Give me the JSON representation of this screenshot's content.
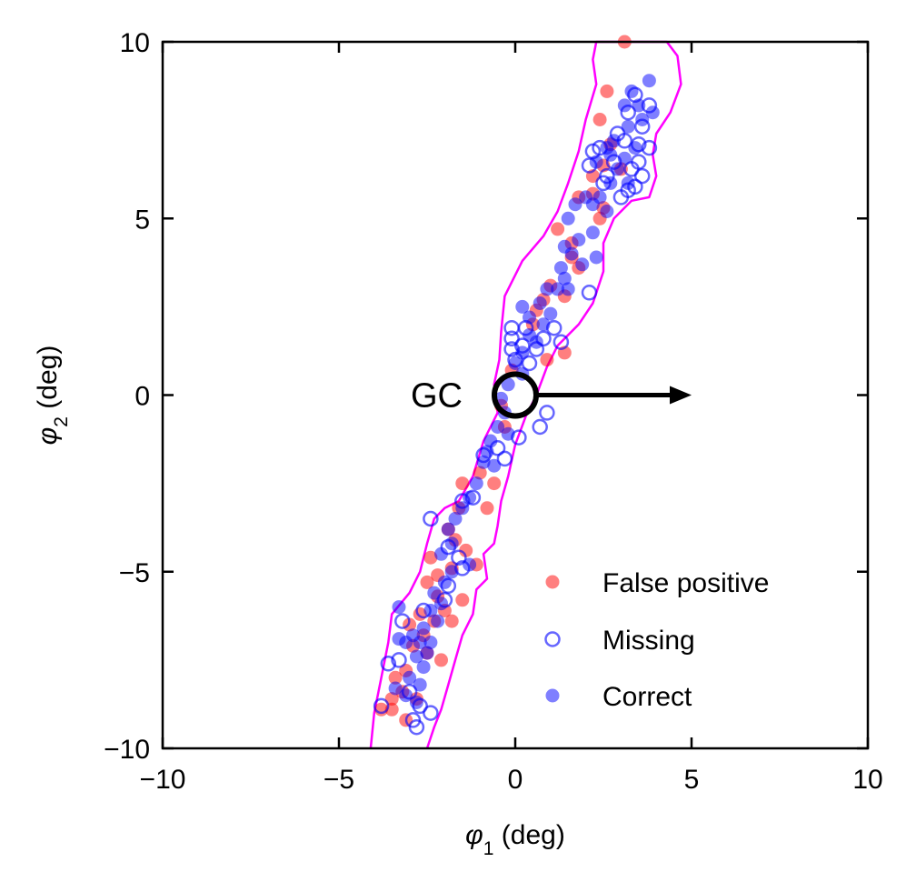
{
  "chart_data": {
    "type": "scatter",
    "xlabel": {
      "symbol": "φ",
      "sub": "1",
      "unit": " (deg)"
    },
    "ylabel": {
      "symbol": "φ",
      "sub": "2",
      "unit": " (deg)"
    },
    "xlim": [
      -10,
      10
    ],
    "ylim": [
      -10,
      10
    ],
    "xticks": [
      -10,
      -5,
      0,
      5,
      10
    ],
    "yticks": [
      -10,
      -5,
      0,
      5,
      10
    ],
    "tick_labels_x": [
      "−10",
      "−5",
      "0",
      "5",
      "10"
    ],
    "tick_labels_y": [
      "−10",
      "−5",
      "0",
      "5",
      "10"
    ],
    "grid": false,
    "legend": {
      "placement": "bottom-right",
      "entries": [
        "False positive",
        "Missing",
        "Correct"
      ]
    },
    "annotation": {
      "text": "GC",
      "point": [
        0,
        0
      ],
      "arrow_to": [
        5,
        0
      ]
    },
    "colors": {
      "false_positive": "#ff0000",
      "missing": "#0000ff",
      "correct": "#0000ff",
      "contour": "#ff00ff",
      "gc": "#000000"
    },
    "contour": {
      "left": [
        [
          -4.1,
          -10
        ],
        [
          -4.0,
          -9.0
        ],
        [
          -3.8,
          -8.0
        ],
        [
          -3.6,
          -7.0
        ],
        [
          -3.5,
          -6.2
        ],
        [
          -3.0,
          -5.6
        ],
        [
          -2.7,
          -5.0
        ],
        [
          -2.5,
          -4.2
        ],
        [
          -2.3,
          -3.5
        ],
        [
          -2.0,
          -3.2
        ],
        [
          -1.6,
          -3.0
        ],
        [
          -1.2,
          -2.3
        ],
        [
          -0.9,
          -1.3
        ],
        [
          -0.5,
          -0.5
        ],
        [
          -0.6,
          0.3
        ],
        [
          -0.45,
          1.0
        ],
        [
          -0.4,
          1.8
        ],
        [
          -0.3,
          2.8
        ],
        [
          0.2,
          3.8
        ],
        [
          0.8,
          4.5
        ],
        [
          1.2,
          5.2
        ],
        [
          1.5,
          6.0
        ],
        [
          1.8,
          6.9
        ],
        [
          2.0,
          7.8
        ],
        [
          2.3,
          8.8
        ],
        [
          2.2,
          9.5
        ],
        [
          2.3,
          10
        ]
      ],
      "right": [
        [
          4.3,
          10
        ],
        [
          4.6,
          9.6
        ],
        [
          4.7,
          8.8
        ],
        [
          4.4,
          8.0
        ],
        [
          4.0,
          7.4
        ],
        [
          3.9,
          6.8
        ],
        [
          4.0,
          6.2
        ],
        [
          3.8,
          5.6
        ],
        [
          3.3,
          5.5
        ],
        [
          2.8,
          5.0
        ],
        [
          2.5,
          4.3
        ],
        [
          2.5,
          3.5
        ],
        [
          2.2,
          2.6
        ],
        [
          1.8,
          2.0
        ],
        [
          1.2,
          1.4
        ],
        [
          0.9,
          0.8
        ],
        [
          0.6,
          0.0
        ],
        [
          0.3,
          -0.6
        ],
        [
          0.0,
          -1.4
        ],
        [
          -0.2,
          -2.3
        ],
        [
          -0.4,
          -3.0
        ],
        [
          -0.5,
          -3.7
        ],
        [
          -0.6,
          -4.2
        ],
        [
          -0.9,
          -4.5
        ],
        [
          -0.8,
          -5.2
        ],
        [
          -1.1,
          -5.5
        ],
        [
          -1.2,
          -6.2
        ],
        [
          -1.5,
          -6.8
        ],
        [
          -1.7,
          -7.5
        ],
        [
          -1.9,
          -8.2
        ],
        [
          -2.1,
          -8.9
        ],
        [
          -2.3,
          -9.4
        ],
        [
          -2.5,
          -10
        ]
      ]
    },
    "series": [
      {
        "name": "False positive",
        "marker": "filled",
        "points": [
          [
            2.6,
            8.6
          ],
          [
            2.4,
            7.8
          ],
          [
            3.1,
            10.0
          ],
          [
            2.2,
            6.2
          ],
          [
            2.5,
            6.5
          ],
          [
            3.0,
            6.4
          ],
          [
            2.7,
            7.1
          ],
          [
            1.8,
            5.6
          ],
          [
            2.2,
            5.7
          ],
          [
            2.4,
            5.0
          ],
          [
            2.5,
            5.3
          ],
          [
            1.2,
            4.7
          ],
          [
            1.6,
            4.3
          ],
          [
            1.8,
            3.6
          ],
          [
            1.6,
            3.9
          ],
          [
            1.0,
            3.1
          ],
          [
            0.8,
            2.7
          ],
          [
            1.4,
            2.8
          ],
          [
            0.6,
            2.4
          ],
          [
            0.5,
            2.0
          ],
          [
            1.4,
            1.2
          ],
          [
            0.9,
            1.0
          ],
          [
            -0.1,
            0.7
          ],
          [
            -0.4,
            -0.3
          ],
          [
            -0.3,
            -0.9
          ],
          [
            -1.0,
            -2.2
          ],
          [
            -0.6,
            -2.5
          ],
          [
            -0.8,
            -3.2
          ],
          [
            -1.5,
            -2.5
          ],
          [
            -1.6,
            -3.2
          ],
          [
            -1.9,
            -3.8
          ],
          [
            -1.7,
            -4.1
          ],
          [
            -1.4,
            -4.4
          ],
          [
            -1.1,
            -4.8
          ],
          [
            -1.8,
            -4.9
          ],
          [
            -2.2,
            -5.1
          ],
          [
            -2.5,
            -5.3
          ],
          [
            -2.2,
            -5.7
          ],
          [
            -2.0,
            -6.1
          ],
          [
            -1.8,
            -6.4
          ],
          [
            -2.3,
            -6.4
          ],
          [
            -2.6,
            -6.8
          ],
          [
            -2.9,
            -7.1
          ],
          [
            -2.5,
            -7.3
          ],
          [
            -2.1,
            -7.5
          ],
          [
            -3.1,
            -7.8
          ],
          [
            -3.4,
            -8.0
          ],
          [
            -3.2,
            -8.4
          ],
          [
            -3.5,
            -8.6
          ],
          [
            -3.8,
            -8.9
          ],
          [
            -3.5,
            -8.9
          ],
          [
            -3.1,
            -9.2
          ],
          [
            -2.8,
            -8.6
          ],
          [
            -2.7,
            -6.2
          ],
          [
            -3.0,
            -6.5
          ],
          [
            -1.5,
            -5.8
          ],
          [
            -2.4,
            -4.6
          ]
        ]
      },
      {
        "name": "Missing",
        "marker": "open",
        "points": [
          [
            3.4,
            8.5
          ],
          [
            3.2,
            8.0
          ],
          [
            3.8,
            8.2
          ],
          [
            3.6,
            7.6
          ],
          [
            3.5,
            7.1
          ],
          [
            3.1,
            7.2
          ],
          [
            2.4,
            7.0
          ],
          [
            2.8,
            6.6
          ],
          [
            3.3,
            6.4
          ],
          [
            3.6,
            6.2
          ],
          [
            2.5,
            6.0
          ],
          [
            3.2,
            5.8
          ],
          [
            3.0,
            5.6
          ],
          [
            3.8,
            7.0
          ],
          [
            2.9,
            7.4
          ],
          [
            2.1,
            6.5
          ],
          [
            2.2,
            6.9
          ],
          [
            2.6,
            6.2
          ],
          [
            3.5,
            6.6
          ],
          [
            3.4,
            5.9
          ],
          [
            2.1,
            2.9
          ],
          [
            1.3,
            1.5
          ],
          [
            1.1,
            1.9
          ],
          [
            0.8,
            1.6
          ],
          [
            0.6,
            1.3
          ],
          [
            0.4,
            0.9
          ],
          [
            0.0,
            1.0
          ],
          [
            -0.1,
            1.3
          ],
          [
            0.2,
            1.4
          ],
          [
            -0.1,
            1.6
          ],
          [
            -0.1,
            1.9
          ],
          [
            0.3,
            1.9
          ],
          [
            0.9,
            -0.5
          ],
          [
            0.7,
            -0.9
          ],
          [
            0.1,
            -1.2
          ],
          [
            -0.5,
            -1.5
          ],
          [
            -0.3,
            -1.8
          ],
          [
            -0.9,
            -1.7
          ],
          [
            -1.2,
            -2.9
          ],
          [
            -1.5,
            -3.0
          ],
          [
            -2.4,
            -3.5
          ],
          [
            -1.9,
            -4.3
          ],
          [
            -1.6,
            -4.6
          ],
          [
            -1.9,
            -5.4
          ],
          [
            -2.0,
            -5.8
          ],
          [
            -2.6,
            -6.1
          ],
          [
            -3.2,
            -6.4
          ],
          [
            -3.3,
            -7.5
          ],
          [
            -3.6,
            -7.6
          ],
          [
            -3.0,
            -8.4
          ],
          [
            -3.8,
            -8.8
          ],
          [
            -2.7,
            -8.8
          ],
          [
            -2.4,
            -9.0
          ],
          [
            -2.9,
            -9.2
          ],
          [
            -2.8,
            -9.4
          ],
          [
            -1.5,
            -4.9
          ]
        ]
      },
      {
        "name": "Correct",
        "marker": "filled",
        "points": [
          [
            3.8,
            8.9
          ],
          [
            3.3,
            8.6
          ],
          [
            3.5,
            8.2
          ],
          [
            3.1,
            8.2
          ],
          [
            3.6,
            7.8
          ],
          [
            3.9,
            8.0
          ],
          [
            3.2,
            7.6
          ],
          [
            2.8,
            7.2
          ],
          [
            2.6,
            7.0
          ],
          [
            2.7,
            6.8
          ],
          [
            3.1,
            6.7
          ],
          [
            3.4,
            7.0
          ],
          [
            2.3,
            6.6
          ],
          [
            2.9,
            6.4
          ],
          [
            3.2,
            6.0
          ],
          [
            2.7,
            6.0
          ],
          [
            2.4,
            5.6
          ],
          [
            2.2,
            5.4
          ],
          [
            2.6,
            5.2
          ],
          [
            2.0,
            5.6
          ],
          [
            1.7,
            5.4
          ],
          [
            1.5,
            5.0
          ],
          [
            2.2,
            4.6
          ],
          [
            1.8,
            4.4
          ],
          [
            1.4,
            4.2
          ],
          [
            1.6,
            4.0
          ],
          [
            2.3,
            3.9
          ],
          [
            1.9,
            3.7
          ],
          [
            1.3,
            3.6
          ],
          [
            1.4,
            3.3
          ],
          [
            1.2,
            3.0
          ],
          [
            0.9,
            3.0
          ],
          [
            1.5,
            3.0
          ],
          [
            0.7,
            2.6
          ],
          [
            0.2,
            2.5
          ],
          [
            0.4,
            2.2
          ],
          [
            1.0,
            2.3
          ],
          [
            0.8,
            2.0
          ],
          [
            0.4,
            1.7
          ],
          [
            0.6,
            1.5
          ],
          [
            0.2,
            1.2
          ],
          [
            0.0,
            0.9
          ],
          [
            0.2,
            0.6
          ],
          [
            -0.2,
            0.3
          ],
          [
            -0.4,
            -0.1
          ],
          [
            -0.3,
            -0.5
          ],
          [
            -0.5,
            -0.9
          ],
          [
            -0.2,
            -1.1
          ],
          [
            -0.7,
            -1.3
          ],
          [
            -0.8,
            -1.6
          ],
          [
            -0.9,
            -1.9
          ],
          [
            -0.6,
            -2.0
          ],
          [
            -1.1,
            -2.5
          ],
          [
            -1.3,
            -2.9
          ],
          [
            -1.5,
            -3.2
          ],
          [
            -1.7,
            -3.5
          ],
          [
            -1.9,
            -3.8
          ],
          [
            -1.8,
            -4.2
          ],
          [
            -2.1,
            -4.5
          ],
          [
            -1.3,
            -4.8
          ],
          [
            -1.8,
            -5.0
          ],
          [
            -2.0,
            -5.3
          ],
          [
            -2.3,
            -5.6
          ],
          [
            -2.1,
            -5.9
          ],
          [
            -2.4,
            -6.1
          ],
          [
            -2.2,
            -6.4
          ],
          [
            -2.6,
            -6.6
          ],
          [
            -2.9,
            -6.8
          ],
          [
            -2.7,
            -7.0
          ],
          [
            -2.4,
            -7.0
          ],
          [
            -2.5,
            -7.3
          ],
          [
            -3.1,
            -7.0
          ],
          [
            -2.8,
            -7.4
          ],
          [
            -2.6,
            -7.7
          ],
          [
            -3.0,
            -8.0
          ],
          [
            -2.7,
            -8.2
          ],
          [
            -3.1,
            -8.5
          ],
          [
            -2.8,
            -8.7
          ],
          [
            -3.3,
            -6.0
          ],
          [
            -3.4,
            -8.3
          ],
          [
            -3.3,
            -6.9
          ]
        ]
      }
    ]
  }
}
